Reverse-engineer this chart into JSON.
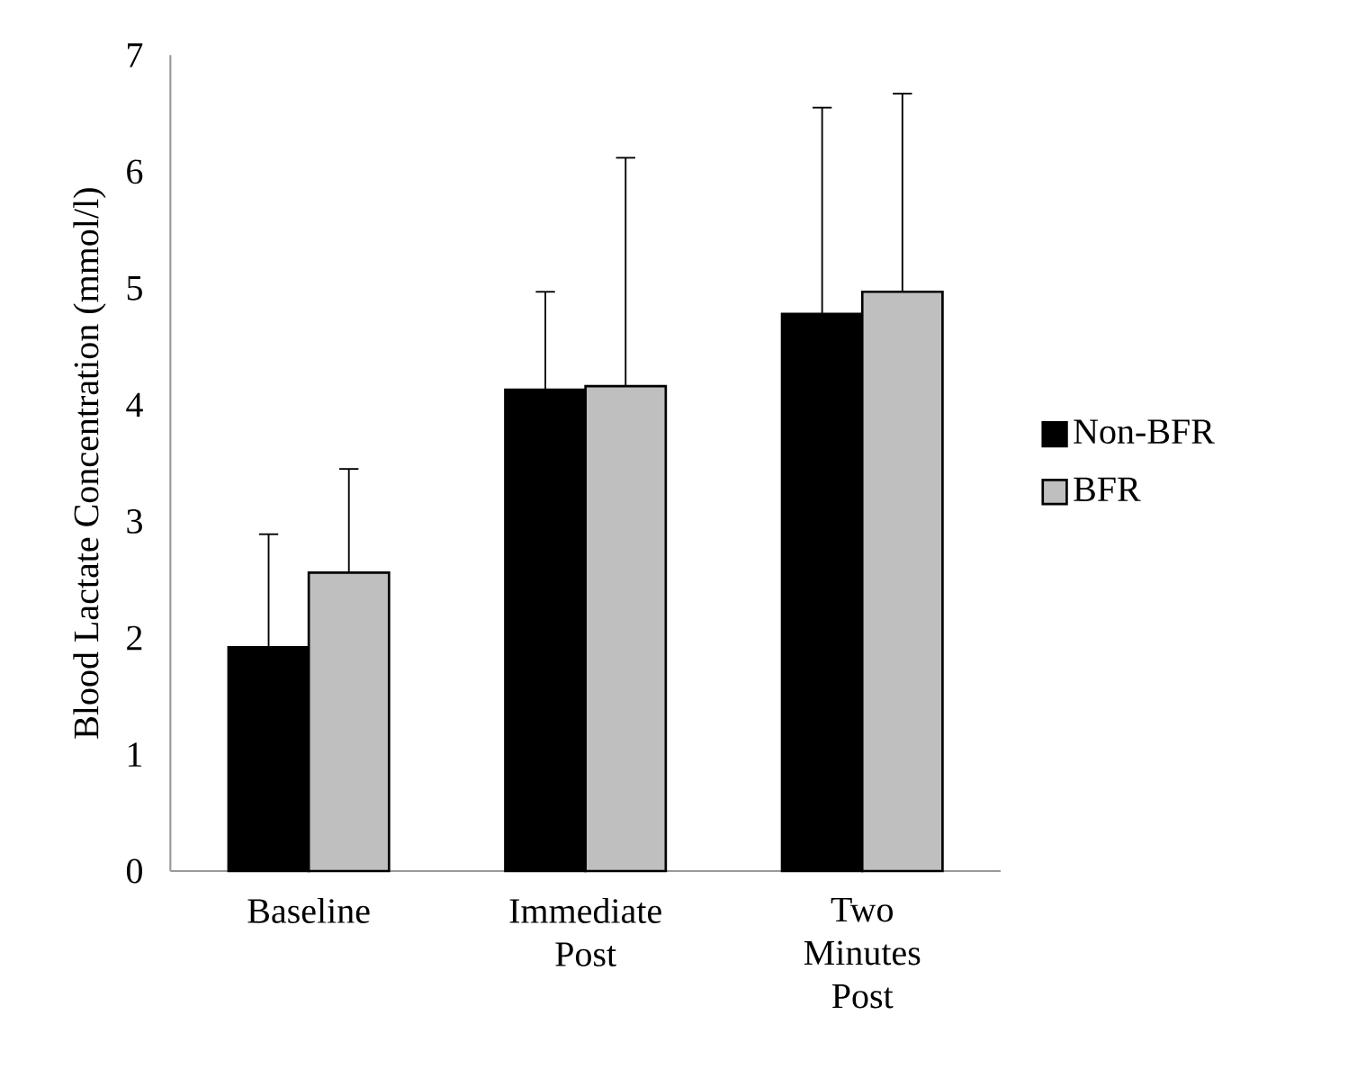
{
  "chart_data": {
    "type": "bar",
    "ylabel": "Blood Lactate Concentration (mmol/l)",
    "categories": [
      "Baseline",
      "Immediate Post",
      "Two Minutes Post"
    ],
    "series": [
      {
        "name": "Non-BFR",
        "color": "#000000",
        "values": [
          1.92,
          4.13,
          4.78
        ],
        "errors": [
          [
            1.92,
            2.89
          ],
          [
            4.13,
            4.97
          ],
          [
            4.78,
            6.55
          ]
        ]
      },
      {
        "name": "BFR",
        "color": "#bfbfbf",
        "values": [
          2.56,
          4.16,
          4.97
        ],
        "errors": [
          [
            2.56,
            3.45
          ],
          [
            4.16,
            6.12
          ],
          [
            4.97,
            6.67
          ]
        ]
      }
    ],
    "ylim": [
      0,
      7
    ],
    "yticks": [
      0,
      1,
      2,
      3,
      4,
      5,
      6,
      7
    ],
    "grid": false,
    "legend": "right"
  }
}
